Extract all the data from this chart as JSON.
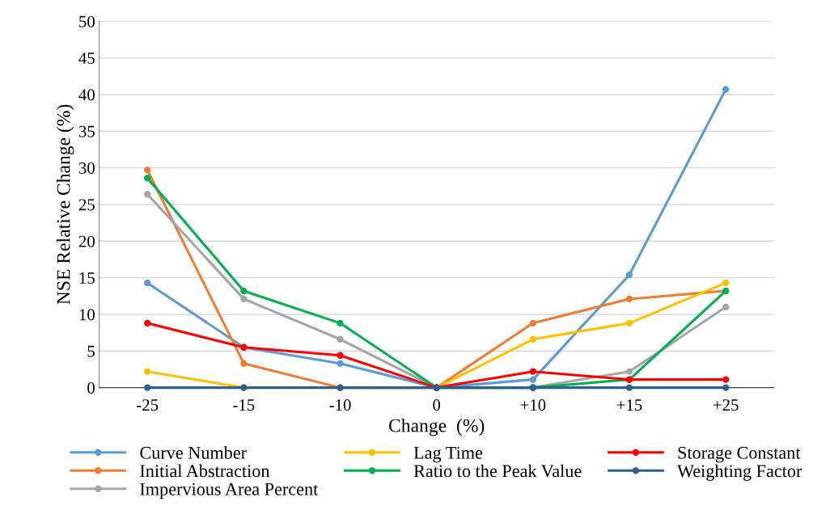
{
  "chart_data": {
    "type": "line",
    "xlabel": "Change  (%)",
    "ylabel": "NSE Relative Change (%)",
    "categories": [
      "-25",
      "-15",
      "-10",
      "0",
      "+10",
      "+15",
      "+25"
    ],
    "series": [
      {
        "name": "Curve Number",
        "color": "#5b9bd5",
        "values": [
          14.3,
          5.5,
          3.3,
          0,
          1.1,
          15.4,
          40.7
        ]
      },
      {
        "name": "Initial Abstraction",
        "color": "#ed7d31",
        "values": [
          29.7,
          3.3,
          0,
          0,
          8.8,
          12.1,
          13.2
        ]
      },
      {
        "name": "Impervious Area Percent",
        "color": "#a5a5a5",
        "values": [
          26.4,
          12.1,
          6.6,
          0,
          0,
          2.2,
          11.0
        ]
      },
      {
        "name": "Lag Time",
        "color": "#ffc000",
        "values": [
          2.2,
          0,
          0,
          0,
          6.6,
          8.8,
          14.3
        ]
      },
      {
        "name": "Ratio to the Peak Value",
        "color": "#00b050",
        "values": [
          28.6,
          13.2,
          8.8,
          0,
          0,
          1.1,
          13.2
        ]
      },
      {
        "name": "Storage Constant",
        "color": "#ff0000",
        "values": [
          8.8,
          5.5,
          4.4,
          0,
          2.2,
          1.1,
          1.1
        ]
      },
      {
        "name": "Weighting Factor",
        "color": "#2e5f8f",
        "values": [
          0,
          0,
          0,
          0,
          0,
          0,
          0
        ]
      }
    ],
    "ylim": [
      0,
      50
    ],
    "yticks": [
      0,
      5,
      10,
      15,
      20,
      25,
      30,
      35,
      40,
      45,
      50
    ],
    "grid": "y",
    "legend": "bottom",
    "marker": "circle",
    "line_style": "solid"
  }
}
